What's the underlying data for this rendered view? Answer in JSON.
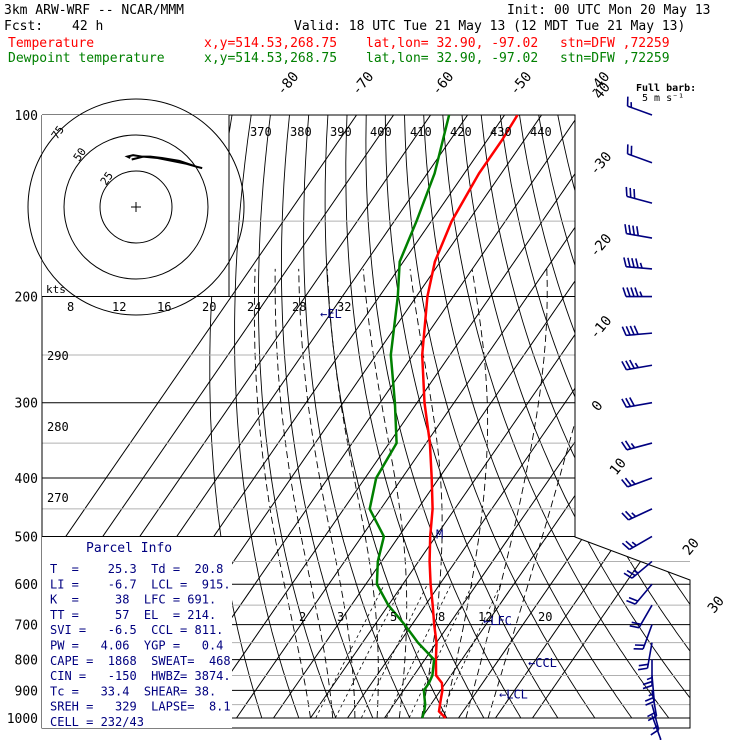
{
  "header": {
    "model": "3km ARW-WRF -- NCAR/MMM",
    "init": "Init: 00 UTC Mon 20 May 13",
    "fcst_label": "Fcst:",
    "fcst_value": "42 h",
    "valid": "Valid: 18 UTC Tue 21 May 13 (12 MDT Tue 21 May 13)",
    "temp_label": "Temperature",
    "dew_label": "Dewpoint temperature",
    "xy": "x,y=514.53,268.75",
    "latlon": "lat,lon= 32.90, -97.02",
    "stn": "stn=DFW ,72259",
    "barb_note_1": "Full barb:",
    "barb_note_2": "5 m s⁻¹"
  },
  "colors": {
    "temperature": "#ff0000",
    "dewpoint": "#008000",
    "label": "#000080",
    "grid": "#000000"
  },
  "parcel_info": {
    "title": "Parcel Info",
    "rows": [
      "T  =    25.3  Td =  20.8",
      "LI =    -6.7  LCL =  915.",
      "K  =     38  LFC = 691.",
      "TT =     57  EL  = 214.",
      "SVI =   -6.5  CCL = 811.",
      "PW =   4.06  YGP =   0.4",
      "CAPE =  1868  SWEAT=  468",
      "CIN =   -150  HWBZ= 3874.",
      "Tc =   33.4  SHEAR= 38.",
      "SREH =   329  LAPSE=  8.1",
      "CELL = 232/43"
    ]
  },
  "hodograph": {
    "rings": [
      "25",
      "50",
      "75"
    ],
    "unit": "kts",
    "trace": [
      [
        -3,
        33
      ],
      [
        5,
        35
      ],
      [
        15,
        34
      ],
      [
        25,
        32
      ],
      [
        35,
        30
      ],
      [
        42,
        28
      ],
      [
        46,
        27
      ],
      [
        42,
        28
      ],
      [
        30,
        32
      ],
      [
        18,
        34
      ],
      [
        10,
        35
      ],
      [
        4,
        35
      ],
      [
        -2,
        36
      ],
      [
        -6,
        35
      ],
      [
        -4,
        34
      ]
    ]
  },
  "level_labels": [
    {
      "text": "←EL",
      "p": 214
    },
    {
      "text": "←LFC",
      "p": 691
    },
    {
      "text": "←CCL",
      "p": 811
    },
    {
      "text": "←LCL",
      "p": 915
    },
    {
      "text": "M",
      "p": 496
    }
  ],
  "chart_data": {
    "type": "line",
    "title": "",
    "ylabel": "",
    "y_scale": "log-pressure",
    "ylim": [
      1000,
      100
    ],
    "pressure_ticks": [
      "100",
      "200",
      "300",
      "400",
      "500",
      "600",
      "700",
      "800",
      "900",
      "1000"
    ],
    "isotherm_labels": [
      "-80",
      "-70",
      "-60",
      "-50",
      "-40",
      "-30",
      "-20",
      "-10",
      "0",
      "10",
      "20",
      "30",
      "40"
    ],
    "theta_labels": [
      "370",
      "380",
      "390",
      "400",
      "410",
      "420",
      "430",
      "440"
    ],
    "theta_labels_left": [
      "290",
      "280",
      "270"
    ],
    "mixing_ratio_labels": [
      "2",
      "3",
      "5",
      "8",
      "12",
      "20"
    ],
    "hodo_speed_labels": [
      "8",
      "12",
      "16",
      "20",
      "24",
      "28",
      "32"
    ],
    "series": [
      {
        "name": "Temperature",
        "points": [
          [
            1000,
            26.5
          ],
          [
            975,
            23.5
          ],
          [
            950,
            22.5
          ],
          [
            925,
            21.5
          ],
          [
            900,
            20.5
          ],
          [
            875,
            19.0
          ],
          [
            850,
            16.0
          ],
          [
            800,
            13.0
          ],
          [
            750,
            10.0
          ],
          [
            700,
            6.0
          ],
          [
            650,
            2.0
          ],
          [
            600,
            -2.5
          ],
          [
            550,
            -7.0
          ],
          [
            500,
            -11.5
          ],
          [
            450,
            -16.0
          ],
          [
            400,
            -22.0
          ],
          [
            350,
            -29.0
          ],
          [
            300,
            -38.0
          ],
          [
            250,
            -47.5
          ],
          [
            200,
            -57.0
          ],
          [
            175,
            -61.5
          ],
          [
            150,
            -64.5
          ],
          [
            125,
            -66.0
          ],
          [
            110,
            -66.0
          ],
          [
            100,
            -66.5
          ]
        ]
      },
      {
        "name": "Dewpoint temperature",
        "points": [
          [
            1000,
            20.2
          ],
          [
            975,
            19.5
          ],
          [
            950,
            18.5
          ],
          [
            925,
            17.0
          ],
          [
            900,
            15.5
          ],
          [
            875,
            15.5
          ],
          [
            850,
            15.0
          ],
          [
            800,
            12.5
          ],
          [
            750,
            5.0
          ],
          [
            700,
            -2.0
          ],
          [
            650,
            -10.0
          ],
          [
            600,
            -17.0
          ],
          [
            550,
            -21.0
          ],
          [
            500,
            -24.0
          ],
          [
            450,
            -33.0
          ],
          [
            400,
            -37.0
          ],
          [
            350,
            -38.0
          ],
          [
            300,
            -46.0
          ],
          [
            250,
            -56.0
          ],
          [
            200,
            -65.0
          ],
          [
            175,
            -71.0
          ],
          [
            150,
            -74.0
          ],
          [
            125,
            -78.0
          ],
          [
            110,
            -82.0
          ],
          [
            100,
            -85.0
          ]
        ]
      }
    ],
    "wind_profile": [
      {
        "p": 100,
        "dir": 290,
        "spd": 18
      },
      {
        "p": 120,
        "dir": 290,
        "spd": 22
      },
      {
        "p": 140,
        "dir": 285,
        "spd": 30
      },
      {
        "p": 160,
        "dir": 280,
        "spd": 40
      },
      {
        "p": 180,
        "dir": 275,
        "spd": 45
      },
      {
        "p": 200,
        "dir": 270,
        "spd": 45
      },
      {
        "p": 230,
        "dir": 265,
        "spd": 40
      },
      {
        "p": 260,
        "dir": 260,
        "spd": 35
      },
      {
        "p": 300,
        "dir": 260,
        "spd": 30
      },
      {
        "p": 350,
        "dir": 255,
        "spd": 25
      },
      {
        "p": 400,
        "dir": 250,
        "spd": 25
      },
      {
        "p": 450,
        "dir": 245,
        "spd": 25
      },
      {
        "p": 500,
        "dir": 240,
        "spd": 25
      },
      {
        "p": 550,
        "dir": 230,
        "spd": 25
      },
      {
        "p": 600,
        "dir": 220,
        "spd": 20
      },
      {
        "p": 650,
        "dir": 210,
        "spd": 20
      },
      {
        "p": 700,
        "dir": 200,
        "spd": 20
      },
      {
        "p": 750,
        "dir": 190,
        "spd": 20
      },
      {
        "p": 800,
        "dir": 180,
        "spd": 25
      },
      {
        "p": 850,
        "dir": 175,
        "spd": 25
      },
      {
        "p": 900,
        "dir": 170,
        "spd": 20
      },
      {
        "p": 950,
        "dir": 165,
        "spd": 15
      },
      {
        "p": 990,
        "dir": 160,
        "spd": 10
      }
    ]
  }
}
